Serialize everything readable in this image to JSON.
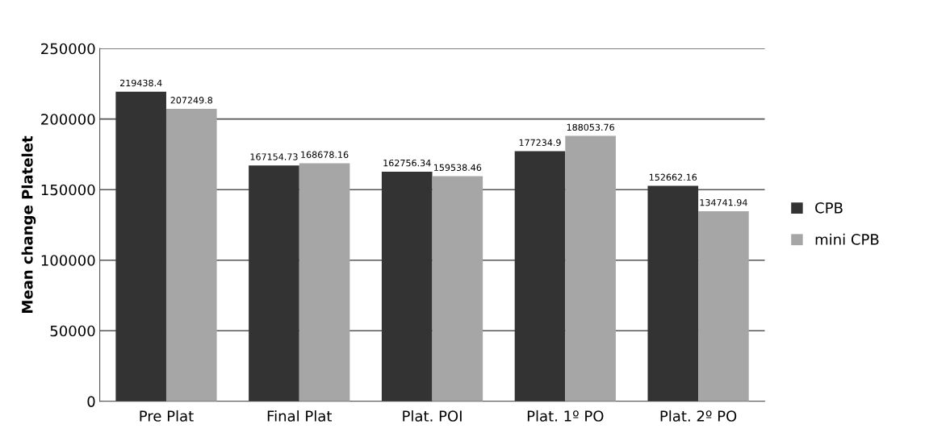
{
  "chart_data": {
    "type": "bar",
    "ylabel": "Mean change Platelet",
    "categories": [
      "Pre Plat",
      "Final Plat",
      "Plat. POI",
      "Plat. 1º PO",
      "Plat. 2º PO"
    ],
    "series": [
      {
        "name": "CPB",
        "color": "#333333",
        "values": [
          219438.4,
          167154.73,
          162756.34,
          177234.9,
          152662.16
        ]
      },
      {
        "name": "mini CPB",
        "color": "#a6a6a6",
        "values": [
          207249.8,
          168678.16,
          159538.46,
          188053.76,
          134741.94
        ]
      }
    ],
    "ylim": [
      0,
      250000
    ],
    "yticks": [
      0,
      50000,
      100000,
      150000,
      200000,
      250000
    ],
    "grid": "y",
    "legend": "right",
    "data_labels": true
  }
}
